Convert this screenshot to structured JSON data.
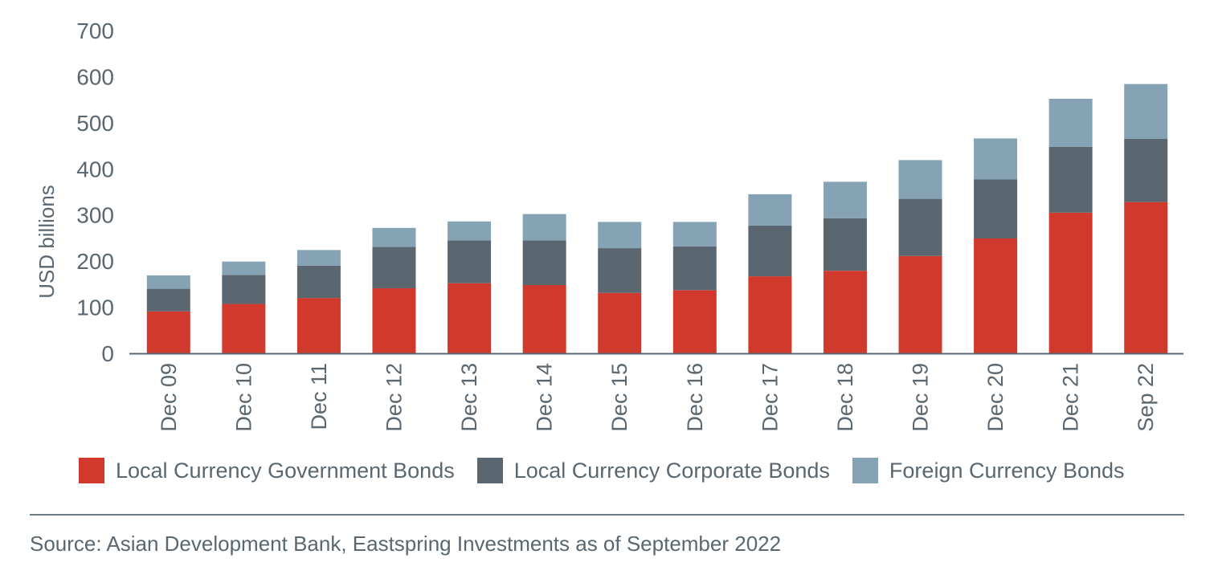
{
  "chart_data": {
    "type": "bar",
    "stacked": true,
    "categories": [
      "Dec 09",
      "Dec 10",
      "Dec 11",
      "Dec 12",
      "Dec 13",
      "Dec 14",
      "Dec 15",
      "Dec 16",
      "Dec 17",
      "Dec 18",
      "Dec 19",
      "Dec 20",
      "Dec 21",
      "Sep 22"
    ],
    "series": [
      {
        "name": "Local Currency Government Bonds",
        "color": "#d0392b",
        "values": [
          91,
          107,
          120,
          141,
          152,
          148,
          131,
          137,
          167,
          179,
          211,
          249,
          305,
          328
        ]
      },
      {
        "name": "Local Currency Corporate Bonds",
        "color": "#5b6770",
        "values": [
          49,
          63,
          70,
          90,
          93,
          97,
          97,
          95,
          110,
          114,
          124,
          128,
          143,
          137
        ]
      },
      {
        "name": "Foreign Currency Bonds",
        "color": "#85a3b5",
        "values": [
          29,
          29,
          34,
          41,
          41,
          57,
          57,
          53,
          68,
          79,
          84,
          89,
          104,
          119
        ]
      }
    ],
    "ylabel": "USD billions",
    "ylim": [
      0,
      700
    ],
    "yticks": [
      0,
      100,
      200,
      300,
      400,
      500,
      600,
      700
    ],
    "grid": false,
    "legend_position": "bottom"
  },
  "legend": {
    "gov_label": "Local Currency Government Bonds",
    "corp_label": "Local Currency Corporate Bonds",
    "foreign_label": "Foreign Currency Bonds"
  },
  "source_text": "Source: Asian Development Bank, Eastspring Investments as of September 2022"
}
